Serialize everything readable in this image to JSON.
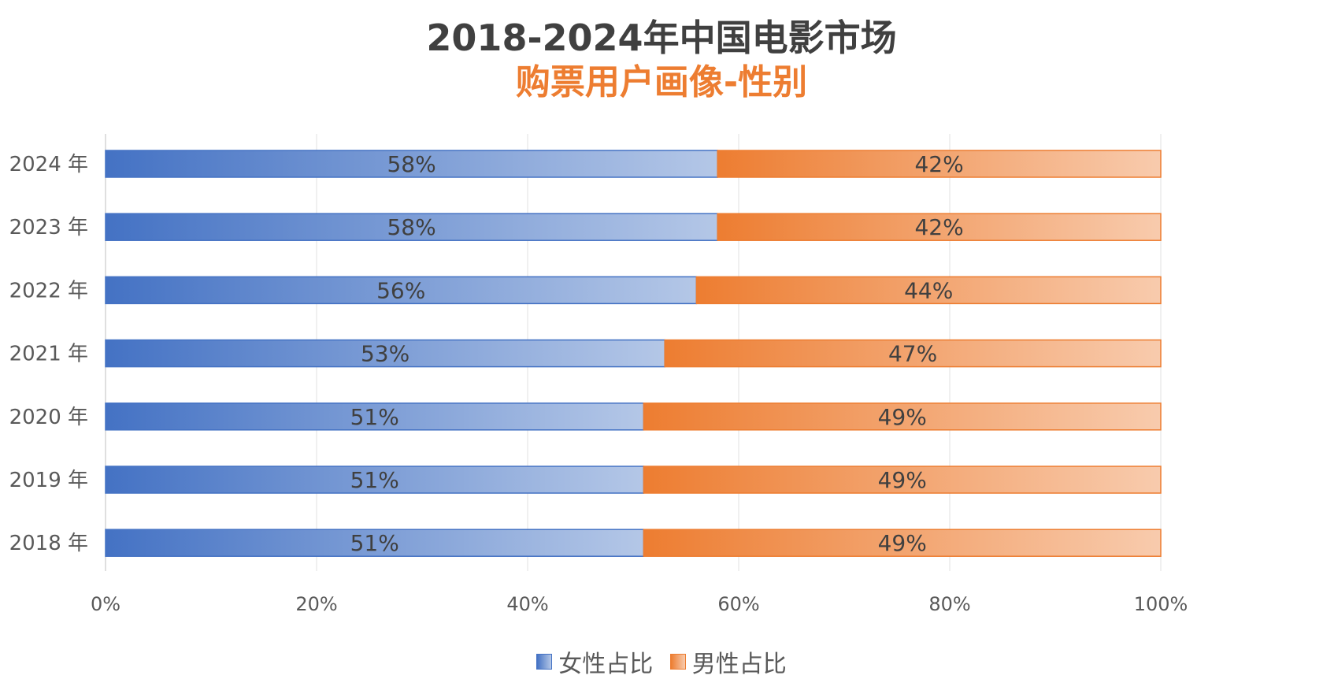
{
  "chart_data": {
    "type": "bar",
    "orientation": "horizontal",
    "stacked": "percent",
    "title": "2018-2024年中国电影市场",
    "subtitle": "购票用户画像-性别",
    "categories": [
      "2024 年",
      "2023 年",
      "2022 年",
      "2021 年",
      "2020 年",
      "2019 年",
      "2018 年"
    ],
    "series": [
      {
        "name": "女性占比",
        "values": [
          58,
          58,
          56,
          53,
          51,
          51,
          51
        ],
        "labels": [
          "58%",
          "58%",
          "56%",
          "53%",
          "51%",
          "51%",
          "51%"
        ],
        "color": "#4472C4",
        "color_light": "#B4C7E7"
      },
      {
        "name": "男性占比",
        "values": [
          42,
          42,
          44,
          47,
          49,
          49,
          49
        ],
        "labels": [
          "42%",
          "42%",
          "44%",
          "47%",
          "49%",
          "49%",
          "49%"
        ],
        "color": "#ED7D31",
        "color_light": "#F8CBAD"
      }
    ],
    "x_ticks": [
      "0%",
      "20%",
      "40%",
      "60%",
      "80%",
      "100%"
    ],
    "xlim": [
      0,
      100
    ],
    "grid": true,
    "legend": "bottom"
  }
}
